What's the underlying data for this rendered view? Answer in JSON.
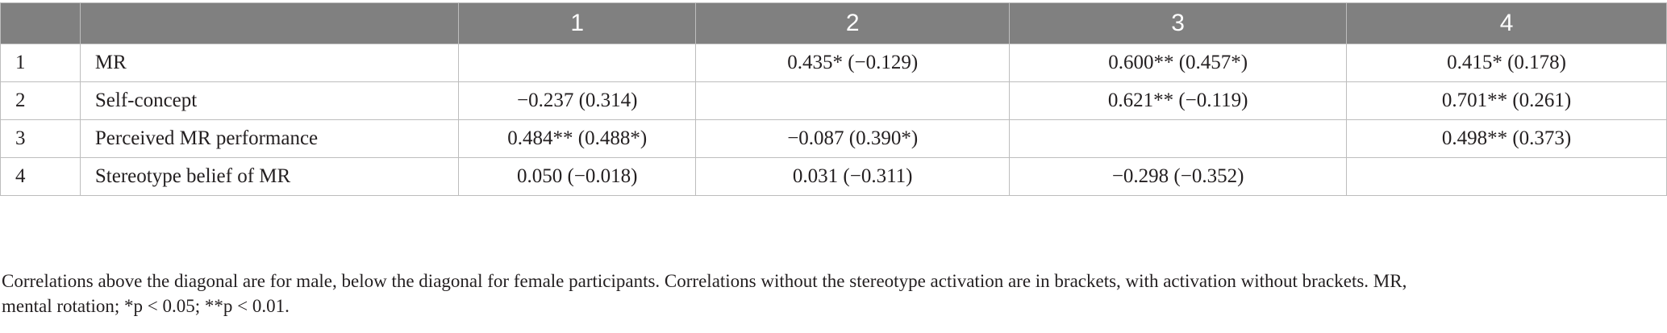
{
  "table": {
    "headers": [
      "",
      "",
      "1",
      "2",
      "3",
      "4"
    ],
    "rows": [
      {
        "num": "1",
        "label": "MR",
        "cells": [
          "",
          "0.435* (−0.129)",
          "0.600** (0.457*)",
          "0.415* (0.178)"
        ]
      },
      {
        "num": "2",
        "label": "Self-concept",
        "cells": [
          "−0.237 (0.314)",
          "",
          "0.621** (−0.119)",
          "0.701** (0.261)"
        ]
      },
      {
        "num": "3",
        "label": "Perceived MR performance",
        "cells": [
          "0.484** (0.488*)",
          "−0.087 (0.390*)",
          "",
          "0.498** (0.373)"
        ]
      },
      {
        "num": "4",
        "label": "Stereotype belief of MR",
        "cells": [
          "0.050 (−0.018)",
          "0.031 (−0.311)",
          "−0.298 (−0.352)",
          ""
        ]
      }
    ]
  },
  "footnote": {
    "line1": "Correlations above the diagonal are for male, below the diagonal for female participants. Correlations without the stereotype activation are in brackets, with activation without brackets. MR,",
    "line2": "mental rotation; *p < 0.05; **p < 0.01."
  }
}
